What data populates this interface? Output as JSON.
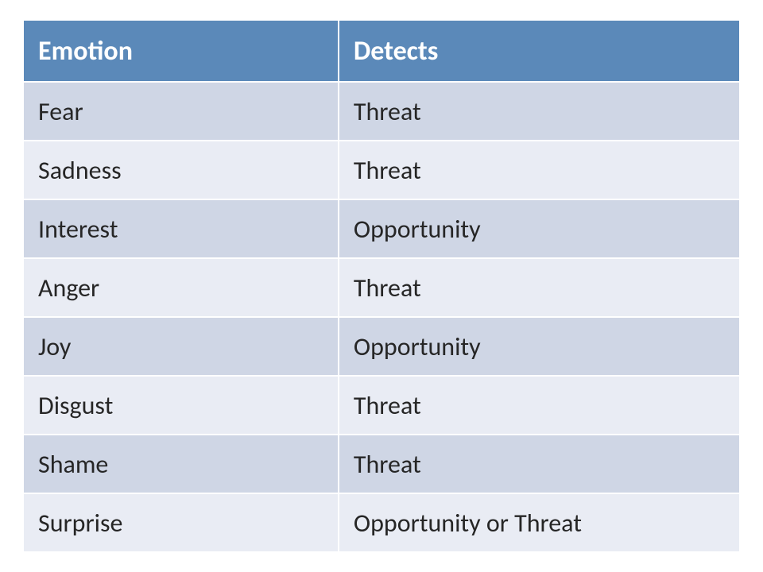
{
  "table": {
    "type": "table",
    "columns": [
      "Emotion",
      "Detects"
    ],
    "rows": [
      [
        "Fear",
        "Threat"
      ],
      [
        "Sadness",
        "Threat"
      ],
      [
        "Interest",
        "Opportunity"
      ],
      [
        "Anger",
        "Threat"
      ],
      [
        "Joy",
        "Opportunity"
      ],
      [
        "Disgust",
        "Threat"
      ],
      [
        "Shame",
        "Threat"
      ],
      [
        "Surprise",
        "Opportunity or Threat"
      ]
    ],
    "header_bg_color": "#5b89b9",
    "header_text_color": "#ffffff",
    "row_odd_bg_color": "#cfd6e5",
    "row_even_bg_color": "#e9ecf4",
    "cell_text_color": "#262626",
    "border_color": "#ffffff",
    "header_fontsize": 34,
    "cell_fontsize": 32,
    "font_family": "Calibri"
  }
}
